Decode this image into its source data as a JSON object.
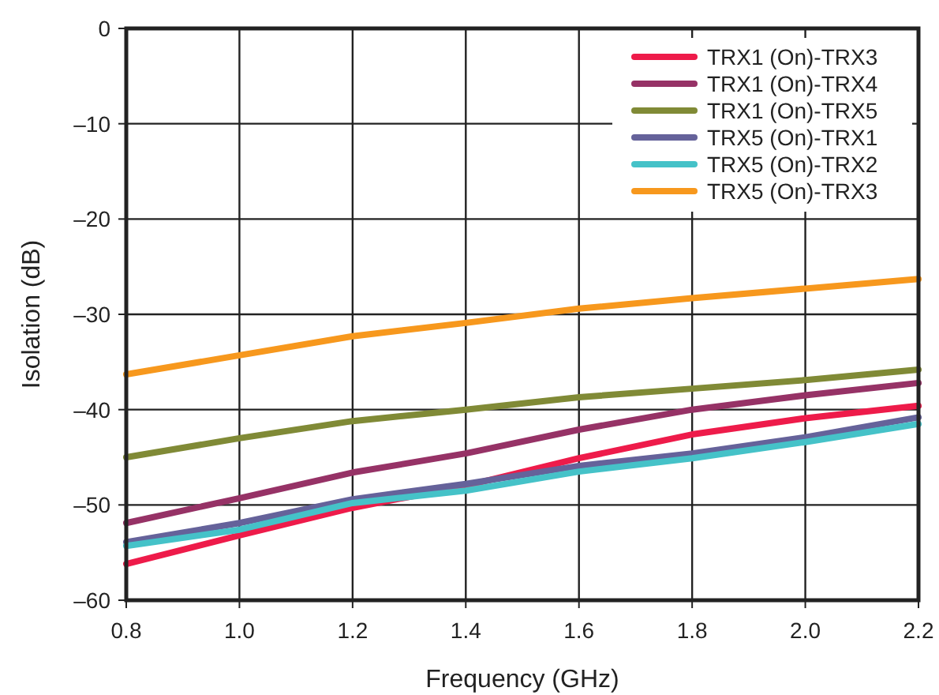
{
  "chart_data": {
    "type": "line",
    "xlabel": "Frequency (GHz)",
    "ylabel": "Isolation (dB)",
    "x": [
      0.8,
      1.0,
      1.2,
      1.4,
      1.6,
      1.8,
      2.0,
      2.2
    ],
    "xlim": [
      0.8,
      2.2
    ],
    "xticks": [
      {
        "value": 0.8,
        "label": "0.8"
      },
      {
        "value": 1.0,
        "label": "1.0"
      },
      {
        "value": 1.2,
        "label": "1.2"
      },
      {
        "value": 1.4,
        "label": "1.4"
      },
      {
        "value": 1.6,
        "label": "1.6"
      },
      {
        "value": 1.8,
        "label": "1.8"
      },
      {
        "value": 2.0,
        "label": "2.0"
      },
      {
        "value": 2.2,
        "label": "2.2"
      }
    ],
    "ylim": [
      -60,
      0
    ],
    "yticks": [
      {
        "value": -60,
        "label": "–60"
      },
      {
        "value": -50,
        "label": "–50"
      },
      {
        "value": -40,
        "label": "–40"
      },
      {
        "value": -30,
        "label": "–30"
      },
      {
        "value": -20,
        "label": "–20"
      },
      {
        "value": -10,
        "label": "–10"
      },
      0
    ],
    "grid": true,
    "legend": "top right",
    "marker": "none",
    "line_style": "solid",
    "series": [
      {
        "name": "TRX1 (On)-TRX3",
        "color": "#ee1b4a",
        "values": [
          -56.2,
          -53.2,
          -50.3,
          -48.0,
          -45.1,
          -42.6,
          -40.9,
          -39.6
        ]
      },
      {
        "name": "TRX1 (On)-TRX4",
        "color": "#963266",
        "values": [
          -51.9,
          -49.3,
          -46.6,
          -44.6,
          -42.1,
          -40.0,
          -38.5,
          -37.2
        ]
      },
      {
        "name": "TRX1 (On)-TRX5",
        "color": "#808a36",
        "values": [
          -45.0,
          -43.0,
          -41.2,
          -40.0,
          -38.7,
          -37.8,
          -36.9,
          -35.8
        ]
      },
      {
        "name": "TRX5 (On)-TRX1",
        "color": "#65629a",
        "values": [
          -53.9,
          -51.9,
          -49.4,
          -47.8,
          -45.9,
          -44.6,
          -42.9,
          -40.8
        ]
      },
      {
        "name": "TRX5 (On)-TRX2",
        "color": "#45c2c8",
        "values": [
          -54.3,
          -52.6,
          -49.8,
          -48.5,
          -46.5,
          -45.1,
          -43.4,
          -41.5
        ]
      },
      {
        "name": "TRX5 (On)-TRX3",
        "color": "#f7981d",
        "values": [
          -36.3,
          -34.3,
          -32.3,
          -30.9,
          -29.4,
          -28.3,
          -27.3,
          -26.3
        ]
      }
    ]
  }
}
